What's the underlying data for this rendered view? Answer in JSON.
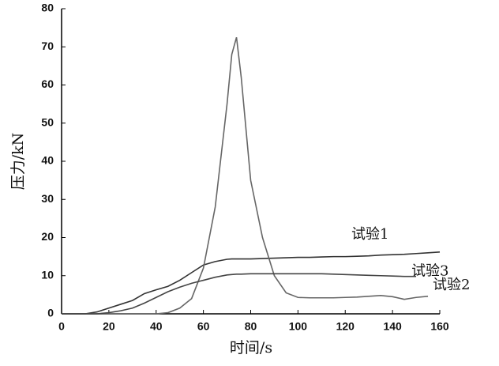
{
  "chart_data": {
    "type": "line",
    "x_label": "时间/s",
    "y_label": "压力/kN",
    "x": [
      0,
      5,
      10,
      15,
      20,
      25,
      30,
      35,
      40,
      45,
      50,
      55,
      60,
      65,
      70,
      72,
      74,
      76,
      80,
      85,
      90,
      95,
      100,
      105,
      110,
      115,
      120,
      125,
      130,
      135,
      140,
      145,
      150,
      155,
      160
    ],
    "series": [
      {
        "name": "试验1",
        "color": "#333333",
        "values": [
          0,
          0,
          0,
          0.5,
          1.5,
          2.5,
          3.5,
          5.3,
          6.3,
          7.2,
          8.8,
          10.8,
          12.8,
          13.7,
          14.3,
          14.4,
          14.4,
          14.4,
          14.4,
          14.5,
          14.6,
          14.7,
          14.8,
          14.8,
          14.9,
          15,
          15,
          15.1,
          15.2,
          15.4,
          15.5,
          15.6,
          15.8,
          16,
          16.2
        ]
      },
      {
        "name": "试验2",
        "color": "#666666",
        "values": [
          0,
          0,
          0,
          0,
          0,
          0,
          0,
          0,
          0,
          0.3,
          1.5,
          4,
          12,
          28,
          55,
          68,
          72.5,
          62,
          35,
          20,
          10,
          5.5,
          4.3,
          4.2,
          4.2,
          4.2,
          4.3,
          4.4,
          4.6,
          4.8,
          4.5,
          3.8,
          4.3,
          4.6,
          null
        ]
      },
      {
        "name": "试验3",
        "color": "#444444",
        "values": [
          0,
          0,
          0,
          0,
          0.3,
          0.8,
          1.5,
          2.8,
          4.3,
          5.8,
          7,
          8,
          8.8,
          9.6,
          10.2,
          10.3,
          10.4,
          10.4,
          10.5,
          10.5,
          10.5,
          10.5,
          10.5,
          10.5,
          10.5,
          10.4,
          10.3,
          10.2,
          10.1,
          10,
          9.9,
          9.8,
          9.8,
          null,
          null
        ]
      }
    ],
    "xlim": [
      0,
      160
    ],
    "xticks": [
      0,
      20,
      40,
      60,
      80,
      100,
      120,
      140,
      160
    ],
    "ylim": [
      0,
      80
    ],
    "yticks": [
      0,
      10,
      20,
      30,
      40,
      50,
      60,
      70,
      80
    ],
    "grid": false
  }
}
